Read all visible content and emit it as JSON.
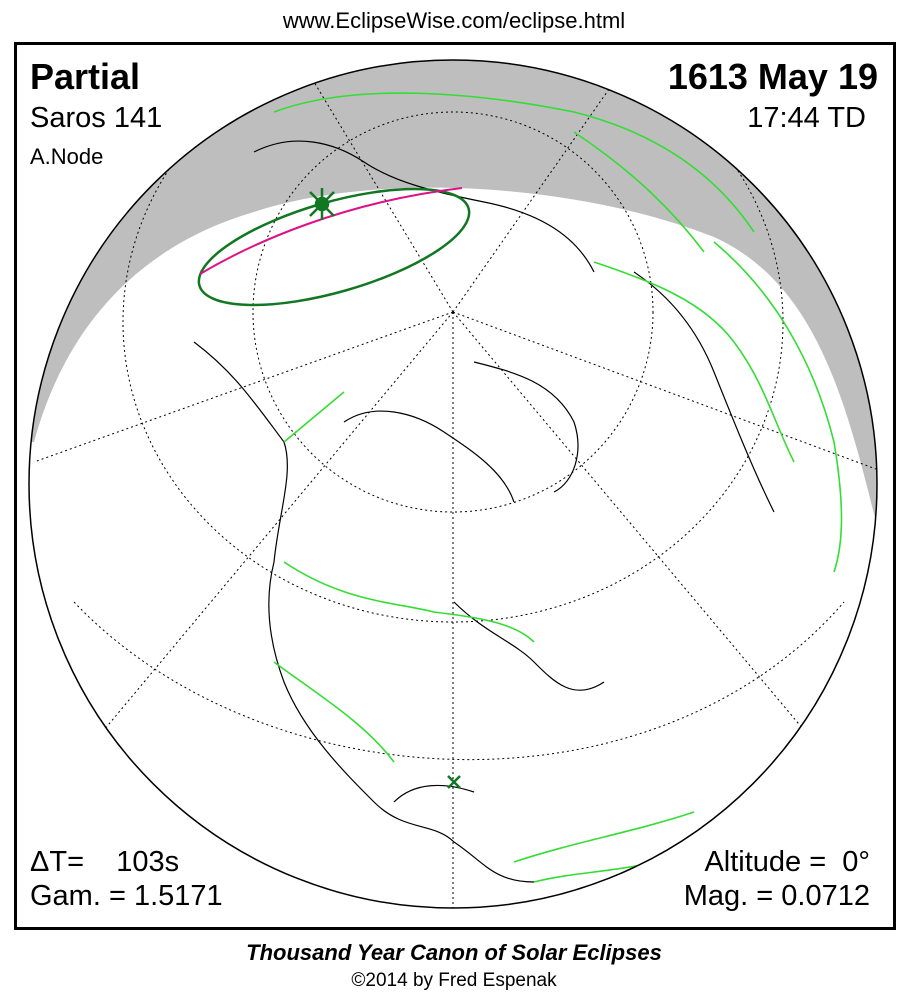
{
  "url": "www.EclipseWise.com/eclipse.html",
  "eclipse": {
    "type": "Partial",
    "saros": "Saros 141",
    "node": "A.Node",
    "date": "1613 May 19",
    "time": "17:44 TD",
    "delta_t": "ΔT=    103s",
    "gamma": "Gam. = 1.5171",
    "altitude": "Altitude =  0°",
    "magnitude": "Mag. = 0.0712"
  },
  "footer": {
    "title": "Thousand Year Canon of Solar Eclipses",
    "copyright": "©2014 by Fred Espenak"
  },
  "colors": {
    "night_shade": "#bebebe",
    "borders": "#33dd33",
    "penumbra_limit": "#117722",
    "max_eclipse_line": "#dd1188",
    "coastline": "#000000"
  }
}
